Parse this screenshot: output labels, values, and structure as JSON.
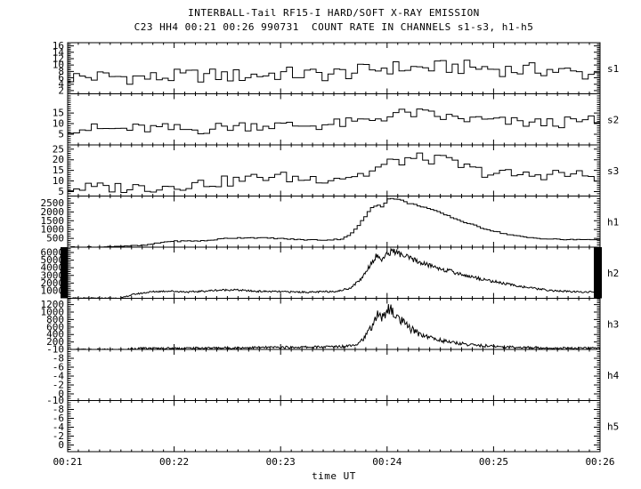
{
  "title": "INTERBALL-Tail RF15-I HARD/SOFT X-RAY EMISSION",
  "subtitle": "C23 HH4 00:21 00:26 990731  COUNT RATE IN CHANNELS s1-s3, h1-h5",
  "colors": {
    "foreground": "#000000",
    "background": "#ffffff"
  },
  "chart_data": {
    "type": "line",
    "title": "INTERBALL-Tail RF15-I HARD/SOFT X-RAY EMISSION",
    "subtitle": "C23 HH4 00:21 00:26 990731  COUNT RATE IN CHANNELS s1-s3, h1-h5",
    "xlabel": "time UT",
    "x_ticks": [
      "00:21",
      "00:22",
      "00:23",
      "00:24",
      "00:25",
      "00:26"
    ],
    "x_range_minutes": [
      0,
      5
    ],
    "x_minor_step_minutes": 0.1,
    "grid": false,
    "legend": "panel labels on right side",
    "panels": [
      {
        "label": "s1",
        "style": "hist",
        "bins": 90,
        "ylim": [
          1,
          17
        ],
        "yticks": [
          2,
          4,
          6,
          8,
          10,
          12,
          14,
          16
        ],
        "ytick_minor": 0.5,
        "keypoints": {
          "t": [
            0,
            0.4,
            0.8,
            1.2,
            1.6,
            2.0,
            2.4,
            2.7,
            3.0,
            3.3,
            3.6,
            3.9,
            4.2,
            4.5,
            4.8,
            5.0
          ],
          "v": [
            6.2,
            6.4,
            6.0,
            6.8,
            6.6,
            7.3,
            7.0,
            7.8,
            9.2,
            9.0,
            9.4,
            9.1,
            8.4,
            8.6,
            7.4,
            7.2
          ]
        },
        "noise": {
          "base": 2.3,
          "rel": 0
        },
        "seed": 1
      },
      {
        "label": "s2",
        "style": "hist",
        "bins": 90,
        "ylim": [
          0,
          24
        ],
        "yticks": [
          5,
          10,
          15
        ],
        "ytick_minor": 1,
        "keypoints": {
          "t": [
            0,
            0.4,
            0.8,
            1.2,
            1.5,
            1.8,
            2.1,
            2.4,
            2.7,
            2.9,
            3.1,
            3.3,
            3.5,
            3.7,
            3.9,
            4.1,
            4.4,
            4.7,
            5.0
          ],
          "v": [
            8.0,
            7.3,
            7.8,
            7.0,
            8.6,
            9.4,
            9.0,
            9.4,
            10.4,
            12.4,
            14.6,
            14.8,
            13.2,
            12.2,
            11.6,
            10.8,
            10.2,
            10.6,
            11.4
          ]
        },
        "noise": {
          "base": 2.6,
          "rel": 0
        },
        "seed": 2
      },
      {
        "label": "s3",
        "style": "hist",
        "bins": 90,
        "ylim": [
          2.9,
          27
        ],
        "yticks": [
          5,
          10,
          15,
          20,
          25
        ],
        "ytick_minor": 1,
        "keypoints": {
          "t": [
            0,
            0.4,
            0.8,
            1.2,
            1.6,
            1.9,
            2.2,
            2.5,
            2.8,
            3.0,
            3.2,
            3.4,
            3.6,
            3.8,
            4.0,
            4.3,
            4.6,
            4.8,
            5.0
          ],
          "v": [
            6.6,
            6.9,
            7.1,
            8.6,
            10.2,
            12.4,
            11.0,
            11.6,
            13.2,
            18.0,
            20.4,
            20.6,
            19.0,
            15.2,
            13.6,
            12.6,
            13.6,
            12.6,
            12.2
          ]
        },
        "noise": {
          "base": 2.7,
          "rel": 0
        },
        "seed": 3
      },
      {
        "label": "h1",
        "style": "hist",
        "bins": 160,
        "ylim": [
          0,
          2900
        ],
        "yticks": [
          500,
          1000,
          1500,
          2000,
          2500
        ],
        "ytick_minor": 125,
        "keypoints": {
          "t": [
            0,
            0.36,
            0.4,
            0.72,
            0.95,
            1.3,
            1.5,
            1.7,
            1.95,
            2.2,
            2.45,
            2.58,
            2.68,
            2.78,
            2.86,
            2.92,
            2.96,
            3.0,
            3.06,
            3.12,
            3.2,
            3.35,
            3.5,
            3.7,
            3.9,
            4.1,
            4.3,
            4.5,
            4.7,
            4.85,
            5.0
          ],
          "v": [
            4,
            4,
            50,
            95,
            330,
            365,
            510,
            540,
            505,
            420,
            405,
            470,
            820,
            1600,
            2250,
            2420,
            2280,
            2700,
            2780,
            2690,
            2500,
            2280,
            1950,
            1480,
            1080,
            770,
            560,
            470,
            420,
            430,
            445
          ]
        },
        "noise": {
          "base": 28,
          "rel": 0.004
        },
        "seed": 4
      },
      {
        "label": "h2",
        "style": "noisy",
        "bins": 640,
        "ylim": [
          0,
          6700
        ],
        "yticks": [
          1000,
          2000,
          3000,
          4000,
          5000,
          6000
        ],
        "ytick_minor": 250,
        "edge_bars": [
          "left",
          "right"
        ],
        "keypoints": {
          "t": [
            0,
            0.12,
            0.5,
            0.62,
            0.8,
            0.95,
            1.15,
            1.4,
            1.55,
            1.75,
            2.0,
            2.3,
            2.55,
            2.66,
            2.76,
            2.85,
            2.9,
            2.95,
            3.0,
            3.05,
            3.1,
            3.2,
            3.35,
            3.55,
            3.75,
            3.95,
            4.15,
            4.35,
            4.55,
            4.75,
            4.9,
            5.0
          ],
          "v": [
            15,
            15,
            25,
            520,
            870,
            950,
            820,
            1050,
            1120,
            930,
            860,
            800,
            950,
            1400,
            2600,
            4600,
            5600,
            5100,
            5700,
            6300,
            5900,
            5300,
            4500,
            3700,
            2950,
            2350,
            1800,
            1350,
            1000,
            850,
            830,
            860
          ]
        },
        "noise": {
          "base": 60,
          "rel": 0.06
        },
        "seed": 5
      },
      {
        "label": "h3",
        "style": "noisy",
        "bins": 640,
        "ylim": [
          0,
          1370
        ],
        "yticks": [
          200,
          400,
          600,
          800,
          1000,
          1200
        ],
        "ytick_minor": 50,
        "keypoints": {
          "t": [
            0,
            0.55,
            0.6,
            1.0,
            1.5,
            2.0,
            2.4,
            2.6,
            2.72,
            2.8,
            2.87,
            2.92,
            2.96,
            3.0,
            3.05,
            3.1,
            3.2,
            3.3,
            3.45,
            3.6,
            3.8,
            4.0,
            4.3,
            4.6,
            5.0
          ],
          "v": [
            -8,
            -8,
            22,
            30,
            42,
            55,
            65,
            85,
            150,
            350,
            700,
            950,
            830,
            1120,
            1000,
            840,
            590,
            420,
            280,
            190,
            120,
            80,
            50,
            36,
            30
          ]
        },
        "noise": {
          "base": 25,
          "rel": 0.14
        },
        "seed": 6
      },
      {
        "label": "h4",
        "style": "line",
        "bins": 2,
        "ylim": [
          1.5,
          -10
        ],
        "yticks": [
          0,
          -2,
          -4,
          -6,
          -8,
          -10
        ],
        "ytick_minor": 0.5,
        "keypoints": {
          "t": [
            0,
            5
          ],
          "v": [
            -10,
            -10
          ]
        },
        "noise": {
          "base": 0,
          "rel": 0
        },
        "seed": 7
      },
      {
        "label": "h5",
        "style": "line",
        "bins": 2,
        "ylim": [
          1.5,
          -10
        ],
        "yticks": [
          0,
          -2,
          -4,
          -6,
          -8,
          -10
        ],
        "ytick_minor": 0.5,
        "keypoints": {
          "t": [
            0,
            5
          ],
          "v": [
            -10,
            -10
          ]
        },
        "noise": {
          "base": 0,
          "rel": 0
        },
        "seed": 8
      }
    ]
  }
}
